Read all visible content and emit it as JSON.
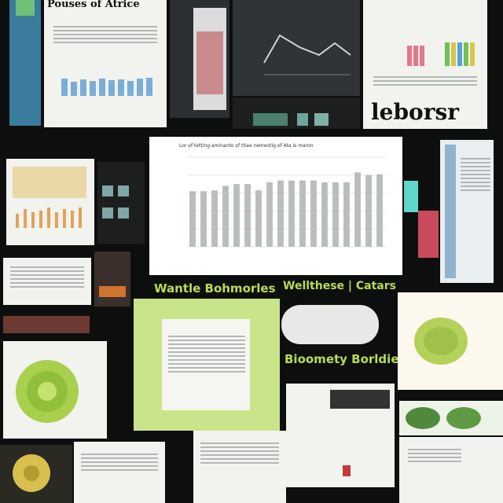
{
  "labels": {
    "top_left_title": "Pouses of Atrice",
    "top_right_word": "leborsr",
    "mid_left_banner": "Wantle Bohmorles",
    "mid_right_banner": "Wellthese | Catars",
    "green_heading": "Bioomety Borldie?"
  },
  "center_chart": {
    "title": "Lor of tetting aminanto of thae nemeotig of Ata is maron",
    "values": [
      62,
      62,
      63,
      68,
      70,
      70,
      63,
      72,
      74,
      74,
      74,
      74,
      72,
      72,
      72,
      83,
      80,
      81
    ]
  },
  "colors": {
    "background": "#0d0f0e",
    "paper": "#f2f2ee",
    "accent_green": "#b7dc55",
    "bar_blue": "#7aaed8",
    "bar_grey": "#b9bdbd",
    "bar_orange": "#e2a25a"
  }
}
